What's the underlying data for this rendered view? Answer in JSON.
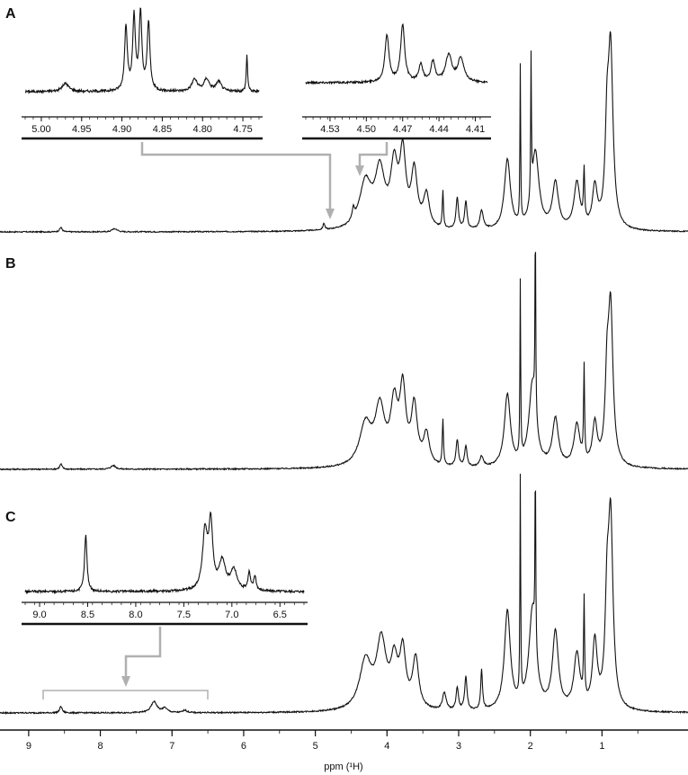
{
  "figure": {
    "panels": [
      "A",
      "B",
      "C"
    ],
    "x_axis_label": "ppm (¹H)",
    "colors": {
      "trace": "#111111",
      "connector": "#b0b0b0",
      "axis": "#111111"
    }
  },
  "chart_data": [
    {
      "type": "line",
      "panel": "A",
      "xlabel": "",
      "ylabel": "",
      "xlim": [
        9.4,
        -0.2
      ],
      "ticks": [],
      "peaks": [
        {
          "ppm": 8.55,
          "h": 0.025,
          "w": 0.02
        },
        {
          "ppm": 7.82,
          "h": 0.012,
          "w": 0.03
        },
        {
          "ppm": 7.78,
          "h": 0.01,
          "w": 0.03
        },
        {
          "ppm": 4.88,
          "h": 0.035,
          "w": 0.015
        },
        {
          "ppm": 4.47,
          "h": 0.06,
          "w": 0.02
        },
        {
          "ppm": 4.3,
          "h": 0.25,
          "w": 0.1
        },
        {
          "ppm": 4.1,
          "h": 0.3,
          "w": 0.08
        },
        {
          "ppm": 3.9,
          "h": 0.32,
          "w": 0.06
        },
        {
          "ppm": 3.78,
          "h": 0.38,
          "w": 0.05
        },
        {
          "ppm": 3.62,
          "h": 0.3,
          "w": 0.05
        },
        {
          "ppm": 3.45,
          "h": 0.18,
          "w": 0.05
        },
        {
          "ppm": 3.22,
          "h": 0.2,
          "w": 0.01
        },
        {
          "ppm": 3.02,
          "h": 0.17,
          "w": 0.02
        },
        {
          "ppm": 2.9,
          "h": 0.15,
          "w": 0.02
        },
        {
          "ppm": 2.68,
          "h": 0.1,
          "w": 0.03
        },
        {
          "ppm": 2.32,
          "h": 0.38,
          "w": 0.05
        },
        {
          "ppm": 2.14,
          "h": 0.85,
          "w": 0.006
        },
        {
          "ppm": 1.99,
          "h": 0.75,
          "w": 0.006
        },
        {
          "ppm": 1.93,
          "h": 0.42,
          "w": 0.06
        },
        {
          "ppm": 1.65,
          "h": 0.25,
          "w": 0.05
        },
        {
          "ppm": 1.35,
          "h": 0.25,
          "w": 0.05
        },
        {
          "ppm": 1.25,
          "h": 0.28,
          "w": 0.01
        },
        {
          "ppm": 1.1,
          "h": 0.22,
          "w": 0.04
        },
        {
          "ppm": 0.88,
          "h": 0.95,
          "w": 0.04
        },
        {
          "ppm": 0.93,
          "h": 0.45,
          "w": 0.03
        }
      ],
      "insets": [
        {
          "xlim": [
            5.02,
            4.73
          ],
          "ticks": [
            5.0,
            4.95,
            4.9,
            4.85,
            4.8,
            4.75
          ],
          "tick_labels": [
            "5.00",
            "4.95",
            "4.90",
            "4.85",
            "4.80",
            "4.75"
          ],
          "peaks": [
            {
              "ppm": 4.895,
              "h": 0.8,
              "w": 0.002
            },
            {
              "ppm": 4.885,
              "h": 0.9,
              "w": 0.002
            },
            {
              "ppm": 4.877,
              "h": 0.95,
              "w": 0.002
            },
            {
              "ppm": 4.867,
              "h": 0.85,
              "w": 0.002
            },
            {
              "ppm": 4.97,
              "h": 0.1,
              "w": 0.005
            },
            {
              "ppm": 4.81,
              "h": 0.15,
              "w": 0.004
            },
            {
              "ppm": 4.795,
              "h": 0.15,
              "w": 0.004
            },
            {
              "ppm": 4.78,
              "h": 0.12,
              "w": 0.004
            },
            {
              "ppm": 4.745,
              "h": 0.45,
              "w": 0.001
            }
          ]
        },
        {
          "xlim": [
            4.55,
            4.4
          ],
          "ticks": [
            4.53,
            4.5,
            4.47,
            4.44,
            4.41
          ],
          "tick_labels": [
            "4.53",
            "4.50",
            "4.47",
            "4.44",
            "4.41"
          ],
          "peaks": [
            {
              "ppm": 4.483,
              "h": 0.7,
              "w": 0.002
            },
            {
              "ppm": 4.47,
              "h": 0.85,
              "w": 0.002
            },
            {
              "ppm": 4.455,
              "h": 0.25,
              "w": 0.002
            },
            {
              "ppm": 4.445,
              "h": 0.3,
              "w": 0.002
            },
            {
              "ppm": 4.432,
              "h": 0.4,
              "w": 0.003
            },
            {
              "ppm": 4.422,
              "h": 0.35,
              "w": 0.003
            }
          ]
        }
      ]
    },
    {
      "type": "line",
      "panel": "B",
      "xlabel": "",
      "ylabel": "",
      "xlim": [
        9.4,
        -0.2
      ],
      "ticks": [],
      "peaks": [
        {
          "ppm": 8.55,
          "h": 0.025,
          "w": 0.02
        },
        {
          "ppm": 7.82,
          "h": 0.018,
          "w": 0.04
        },
        {
          "ppm": 4.3,
          "h": 0.2,
          "w": 0.1
        },
        {
          "ppm": 4.1,
          "h": 0.27,
          "w": 0.08
        },
        {
          "ppm": 3.9,
          "h": 0.28,
          "w": 0.06
        },
        {
          "ppm": 3.78,
          "h": 0.35,
          "w": 0.05
        },
        {
          "ppm": 3.62,
          "h": 0.28,
          "w": 0.05
        },
        {
          "ppm": 3.45,
          "h": 0.15,
          "w": 0.05
        },
        {
          "ppm": 3.22,
          "h": 0.22,
          "w": 0.01
        },
        {
          "ppm": 3.02,
          "h": 0.13,
          "w": 0.02
        },
        {
          "ppm": 2.9,
          "h": 0.1,
          "w": 0.02
        },
        {
          "ppm": 2.68,
          "h": 0.05,
          "w": 0.03
        },
        {
          "ppm": 2.32,
          "h": 0.35,
          "w": 0.05
        },
        {
          "ppm": 2.14,
          "h": 0.85,
          "w": 0.006
        },
        {
          "ppm": 1.93,
          "h": 0.95,
          "w": 0.006
        },
        {
          "ppm": 1.97,
          "h": 0.4,
          "w": 0.06
        },
        {
          "ppm": 1.65,
          "h": 0.23,
          "w": 0.05
        },
        {
          "ppm": 1.35,
          "h": 0.2,
          "w": 0.05
        },
        {
          "ppm": 1.25,
          "h": 0.45,
          "w": 0.008
        },
        {
          "ppm": 1.1,
          "h": 0.2,
          "w": 0.04
        },
        {
          "ppm": 0.88,
          "h": 0.75,
          "w": 0.04
        },
        {
          "ppm": 0.93,
          "h": 0.35,
          "w": 0.03
        }
      ]
    },
    {
      "type": "line",
      "panel": "C",
      "xlabel": "ppm (¹H)",
      "ylabel": "",
      "xlim": [
        9.4,
        -0.2
      ],
      "ticks": [
        9,
        8,
        7,
        6,
        5,
        4,
        3,
        2,
        1
      ],
      "tick_labels": [
        "9",
        "8",
        "7",
        "6",
        "5",
        "4",
        "3",
        "2",
        "1"
      ],
      "peaks": [
        {
          "ppm": 8.55,
          "h": 0.03,
          "w": 0.02
        },
        {
          "ppm": 7.25,
          "h": 0.05,
          "w": 0.05
        },
        {
          "ppm": 7.1,
          "h": 0.02,
          "w": 0.04
        },
        {
          "ppm": 6.82,
          "h": 0.012,
          "w": 0.03
        },
        {
          "ppm": 4.3,
          "h": 0.22,
          "w": 0.1
        },
        {
          "ppm": 4.08,
          "h": 0.3,
          "w": 0.08
        },
        {
          "ppm": 3.9,
          "h": 0.2,
          "w": 0.06
        },
        {
          "ppm": 3.78,
          "h": 0.25,
          "w": 0.05
        },
        {
          "ppm": 3.6,
          "h": 0.23,
          "w": 0.05
        },
        {
          "ppm": 3.2,
          "h": 0.08,
          "w": 0.03
        },
        {
          "ppm": 3.02,
          "h": 0.1,
          "w": 0.02
        },
        {
          "ppm": 2.9,
          "h": 0.15,
          "w": 0.02
        },
        {
          "ppm": 2.68,
          "h": 0.18,
          "w": 0.015
        },
        {
          "ppm": 2.32,
          "h": 0.45,
          "w": 0.05
        },
        {
          "ppm": 2.14,
          "h": 1.0,
          "w": 0.006
        },
        {
          "ppm": 1.93,
          "h": 0.85,
          "w": 0.006
        },
        {
          "ppm": 1.97,
          "h": 0.45,
          "w": 0.06
        },
        {
          "ppm": 1.65,
          "h": 0.35,
          "w": 0.05
        },
        {
          "ppm": 1.35,
          "h": 0.25,
          "w": 0.05
        },
        {
          "ppm": 1.25,
          "h": 0.45,
          "w": 0.008
        },
        {
          "ppm": 1.1,
          "h": 0.3,
          "w": 0.04
        },
        {
          "ppm": 0.88,
          "h": 0.85,
          "w": 0.04
        },
        {
          "ppm": 0.93,
          "h": 0.4,
          "w": 0.03
        }
      ],
      "insets": [
        {
          "xlim": [
            9.15,
            6.25
          ],
          "ticks": [
            9.0,
            8.5,
            8.0,
            7.5,
            7.0,
            6.5
          ],
          "tick_labels": [
            "9.0",
            "8.5",
            "8.0",
            "7.5",
            "7.0",
            "6.5"
          ],
          "peaks": [
            {
              "ppm": 8.52,
              "h": 0.7,
              "w": 0.015
            },
            {
              "ppm": 7.28,
              "h": 0.7,
              "w": 0.03
            },
            {
              "ppm": 7.22,
              "h": 0.8,
              "w": 0.025
            },
            {
              "ppm": 7.1,
              "h": 0.35,
              "w": 0.04
            },
            {
              "ppm": 6.98,
              "h": 0.25,
              "w": 0.04
            },
            {
              "ppm": 6.82,
              "h": 0.22,
              "w": 0.015
            },
            {
              "ppm": 6.76,
              "h": 0.18,
              "w": 0.015
            }
          ]
        }
      ]
    }
  ]
}
